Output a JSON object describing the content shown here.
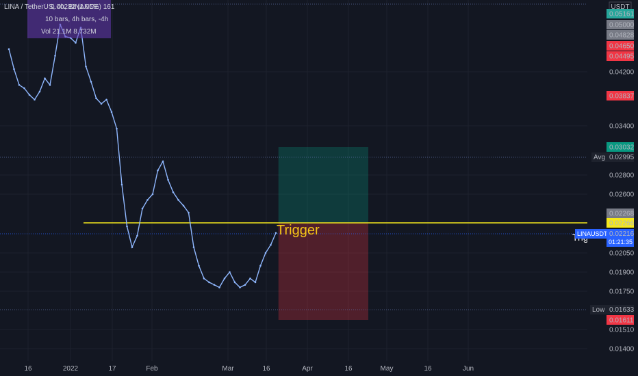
{
  "header": {
    "symbol": "LINA / TetherUS, 4h, BINANCE",
    "legend_values": "0.00232 (1.05%) 161",
    "bars_info": "10 bars, 4h bars, -4h",
    "volume": "Vol 21.1M 8.732M"
  },
  "currency": "USDT",
  "annotation": {
    "label": "Trigger",
    "side_label": "Trigger",
    "level": 0.02266
  },
  "lines": {
    "avg": {
      "label": "Avg",
      "value": "0.02995"
    },
    "low": {
      "label": "Low",
      "value": "0.01633"
    },
    "last": {
      "symbol": "LINAUSDT",
      "value": "0.02216",
      "countdown": "01:21:35"
    }
  },
  "price_tags": [
    {
      "value": "0.05161",
      "color": "#26a69a"
    },
    {
      "value": "0.05000",
      "color": "#787b86"
    },
    {
      "value": "0.04828",
      "color": "#787b86"
    },
    {
      "value": "0.04650",
      "color": "#f23645"
    },
    {
      "value": "0.04495",
      "color": "#f23645"
    },
    {
      "value": "0.03837",
      "color": "#f23645"
    },
    {
      "value": "0.03032",
      "color": "#089981"
    },
    {
      "value": "0.02268",
      "color": "#787b86"
    },
    {
      "value": "0.02266",
      "color": "#f5e81c"
    },
    {
      "value": "0.01611",
      "color": "#f23645"
    }
  ],
  "chart_data": {
    "type": "line",
    "y_ticks": [
      "0.04200",
      "0.03400",
      "0.02800",
      "0.02600",
      "0.02050",
      "0.01900",
      "0.01750",
      "0.01510",
      "0.01400"
    ],
    "x_ticks": [
      "16",
      "2022",
      "17",
      "Feb",
      "Mar",
      "16",
      "Apr",
      "16",
      "May",
      "16",
      "Jun"
    ],
    "series": [
      {
        "x": [
          "Dec 8",
          "Dec 10",
          "Dec 12",
          "Dec 14",
          "Dec 16",
          "Dec 18",
          "Dec 20",
          "Dec 22",
          "Dec 24",
          "Dec 26",
          "Dec 28",
          "Dec 30",
          "Jan 1",
          "Jan 3",
          "Jan 5",
          "Jan 7",
          "Jan 9",
          "Jan 11",
          "Jan 13",
          "Jan 15",
          "Jan 17",
          "Jan 19",
          "Jan 21",
          "Jan 23",
          "Jan 25",
          "Jan 27",
          "Jan 29",
          "Jan 31",
          "Feb 2",
          "Feb 4",
          "Feb 6",
          "Feb 8",
          "Feb 10",
          "Feb 12",
          "Feb 14",
          "Feb 16",
          "Feb 18",
          "Feb 20",
          "Feb 22",
          "Feb 24",
          "Feb 26",
          "Feb 28",
          "Mar 2",
          "Mar 4",
          "Mar 6",
          "Mar 8",
          "Mar 10",
          "Mar 12",
          "Mar 14",
          "Mar 16",
          "Mar 18",
          "Mar 20",
          "Mar 22"
        ],
        "values": [
          0.046,
          0.0425,
          0.04,
          0.0395,
          0.0385,
          0.0378,
          0.039,
          0.041,
          0.04,
          0.045,
          0.05,
          0.048,
          0.0478,
          0.047,
          0.0495,
          0.043,
          0.0405,
          0.038,
          0.0372,
          0.0378,
          0.036,
          0.0335,
          0.027,
          0.0225,
          0.021,
          0.022,
          0.0235,
          0.025,
          0.026,
          0.0285,
          0.0295,
          0.0275,
          0.0262,
          0.025,
          0.024,
          0.0228,
          0.021,
          0.0195,
          0.0185,
          0.0182,
          0.018,
          0.0178,
          0.0185,
          0.019,
          0.0182,
          0.0178,
          0.018,
          0.0185,
          0.0182,
          0.0195,
          0.0205,
          0.0212,
          0.0222
        ]
      }
    ],
    "position": {
      "entry": 0.02266,
      "target": 0.03032,
      "stop": 0.01611,
      "start": "Mar 23",
      "end": "Apr 27"
    },
    "grid": true
  }
}
